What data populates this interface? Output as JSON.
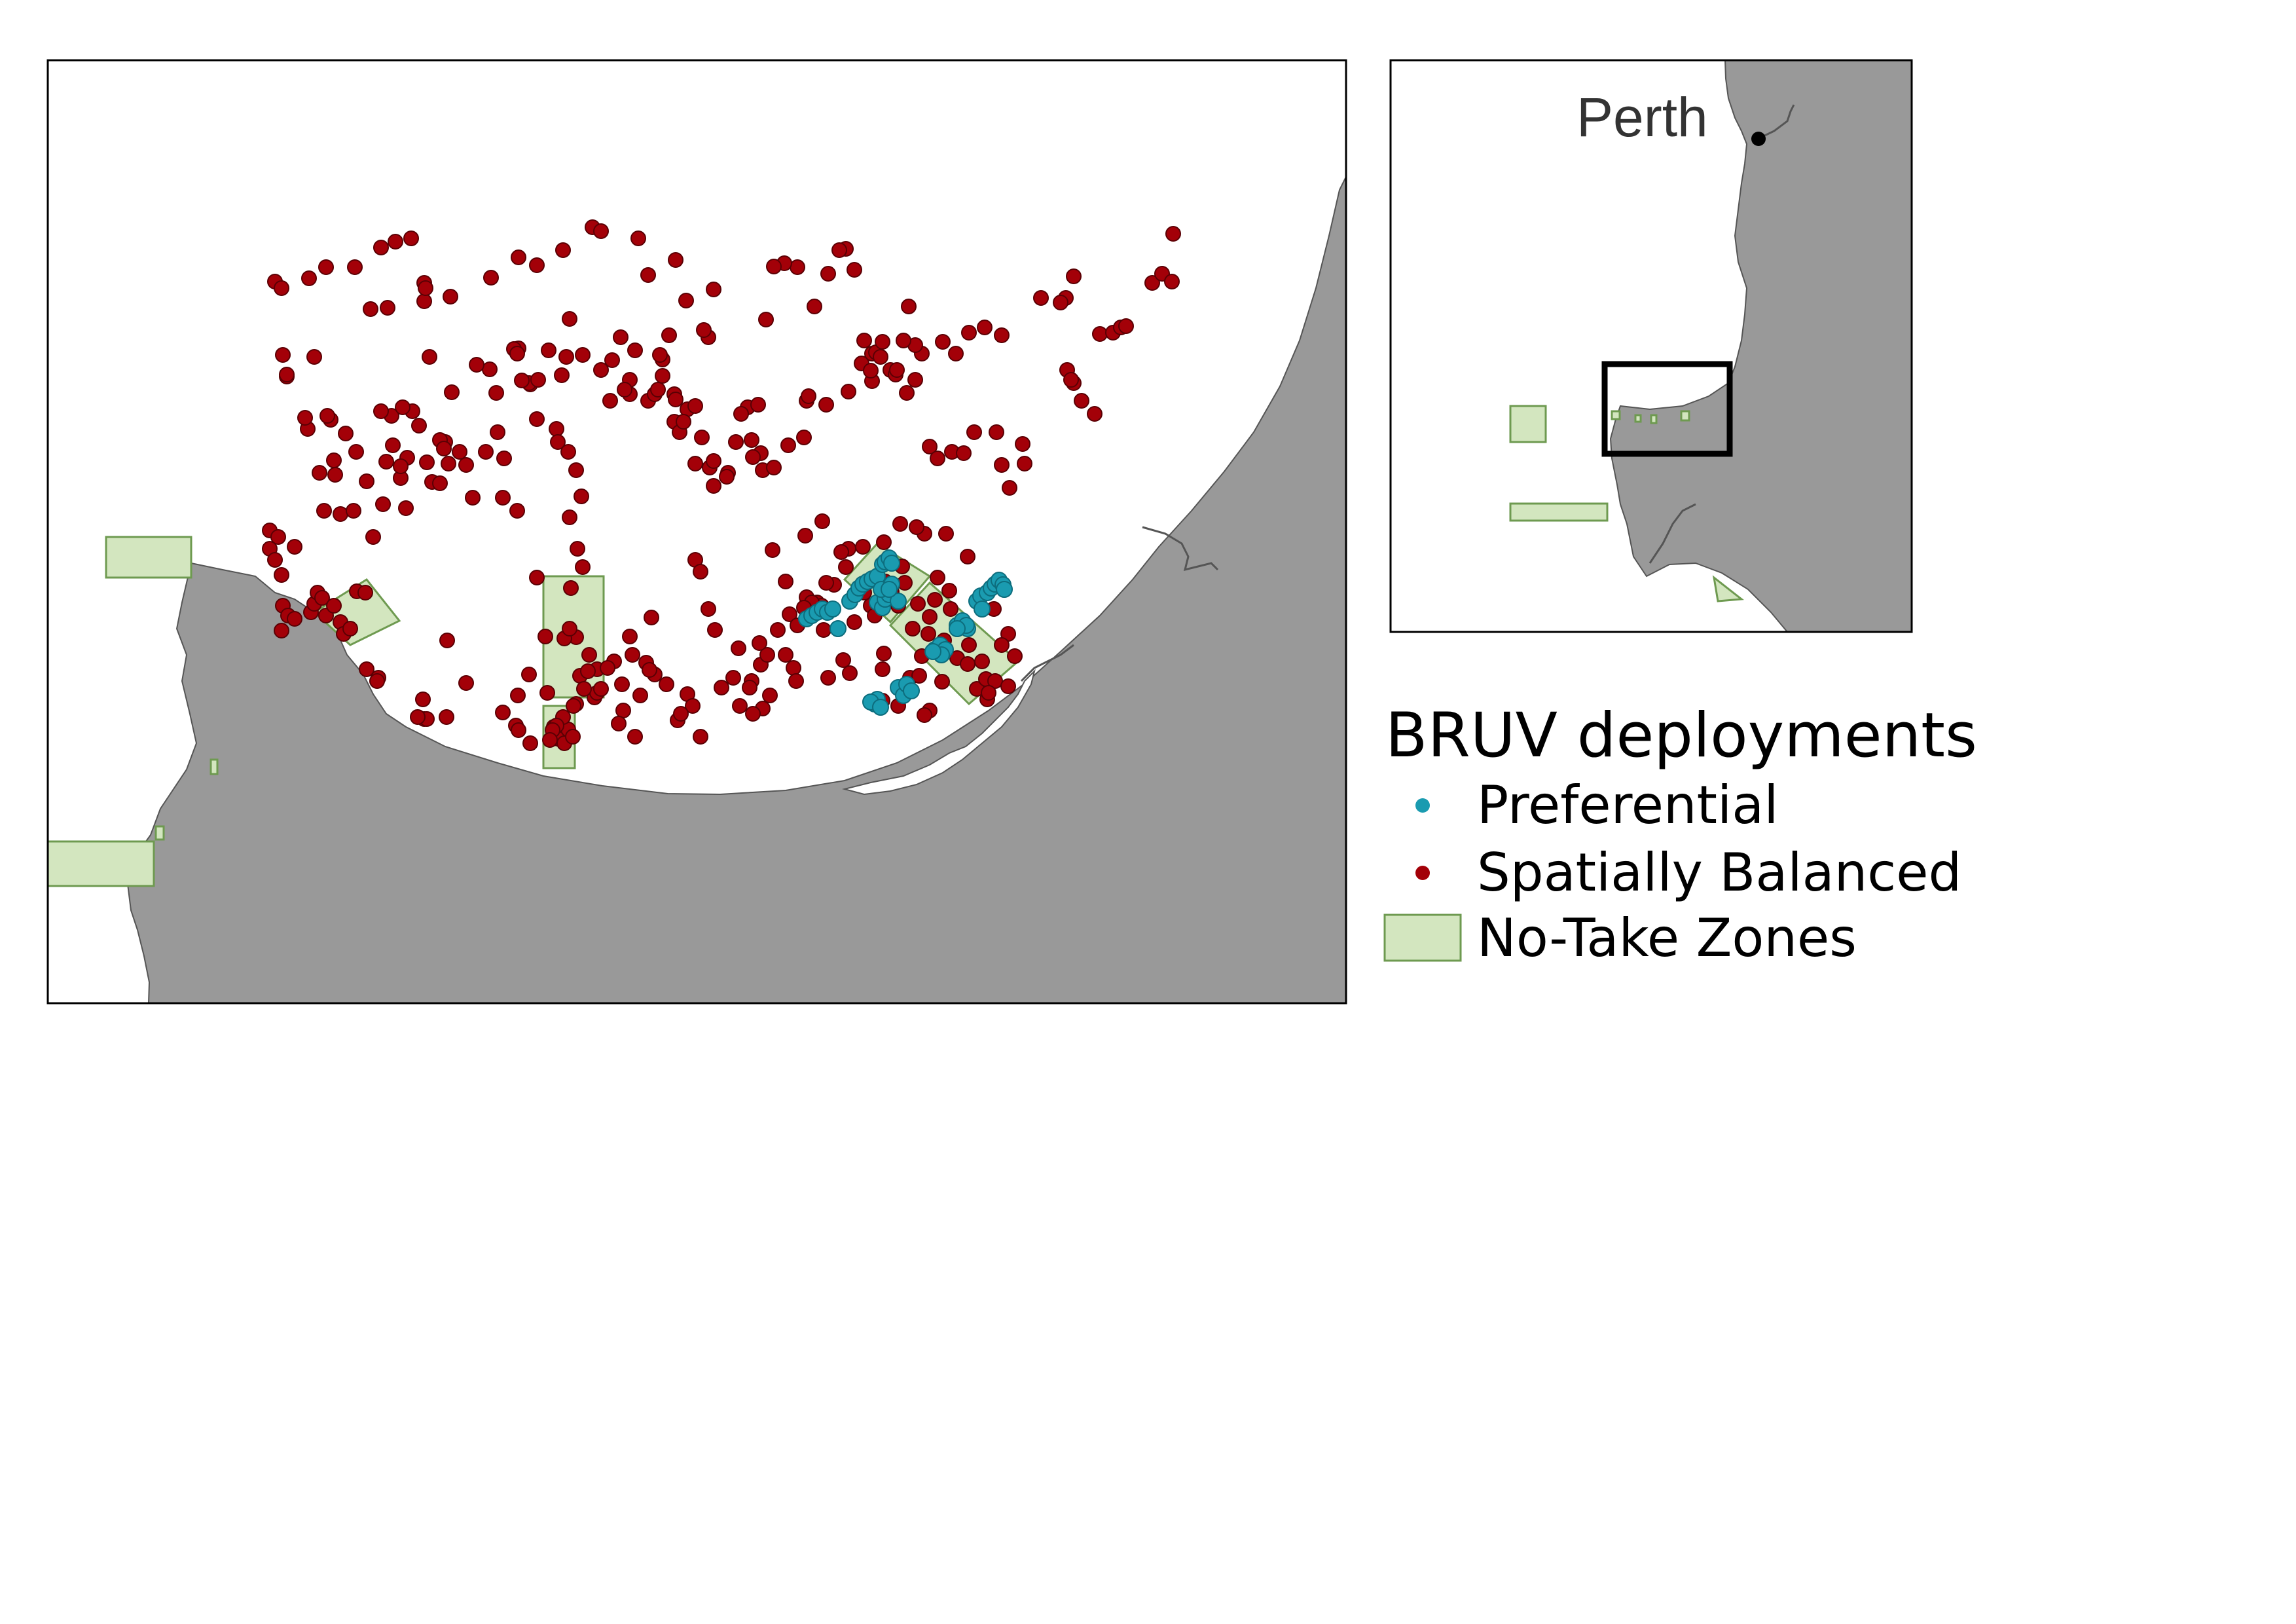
{
  "colors": {
    "land": "#999999",
    "coast_outline": "#555555",
    "water": "#ffffff",
    "preferential": "#1a9bb0",
    "spatially_balanced": "#a30008",
    "no_take_fill": "#d3e6bf",
    "no_take_stroke": "#6e9a50",
    "frame": "#000000"
  },
  "inset": {
    "city_label": "Perth",
    "extent_box_icon": "black-rectangle-extent-indicator"
  },
  "legend": {
    "title": "BRUV deployments",
    "items": [
      {
        "label": "Preferential",
        "symbol": "teal-dot-icon"
      },
      {
        "label": "Spatially Balanced",
        "symbol": "red-dot-icon"
      },
      {
        "label": "No-Take Zones",
        "symbol": "green-rectangle-icon"
      }
    ]
  }
}
